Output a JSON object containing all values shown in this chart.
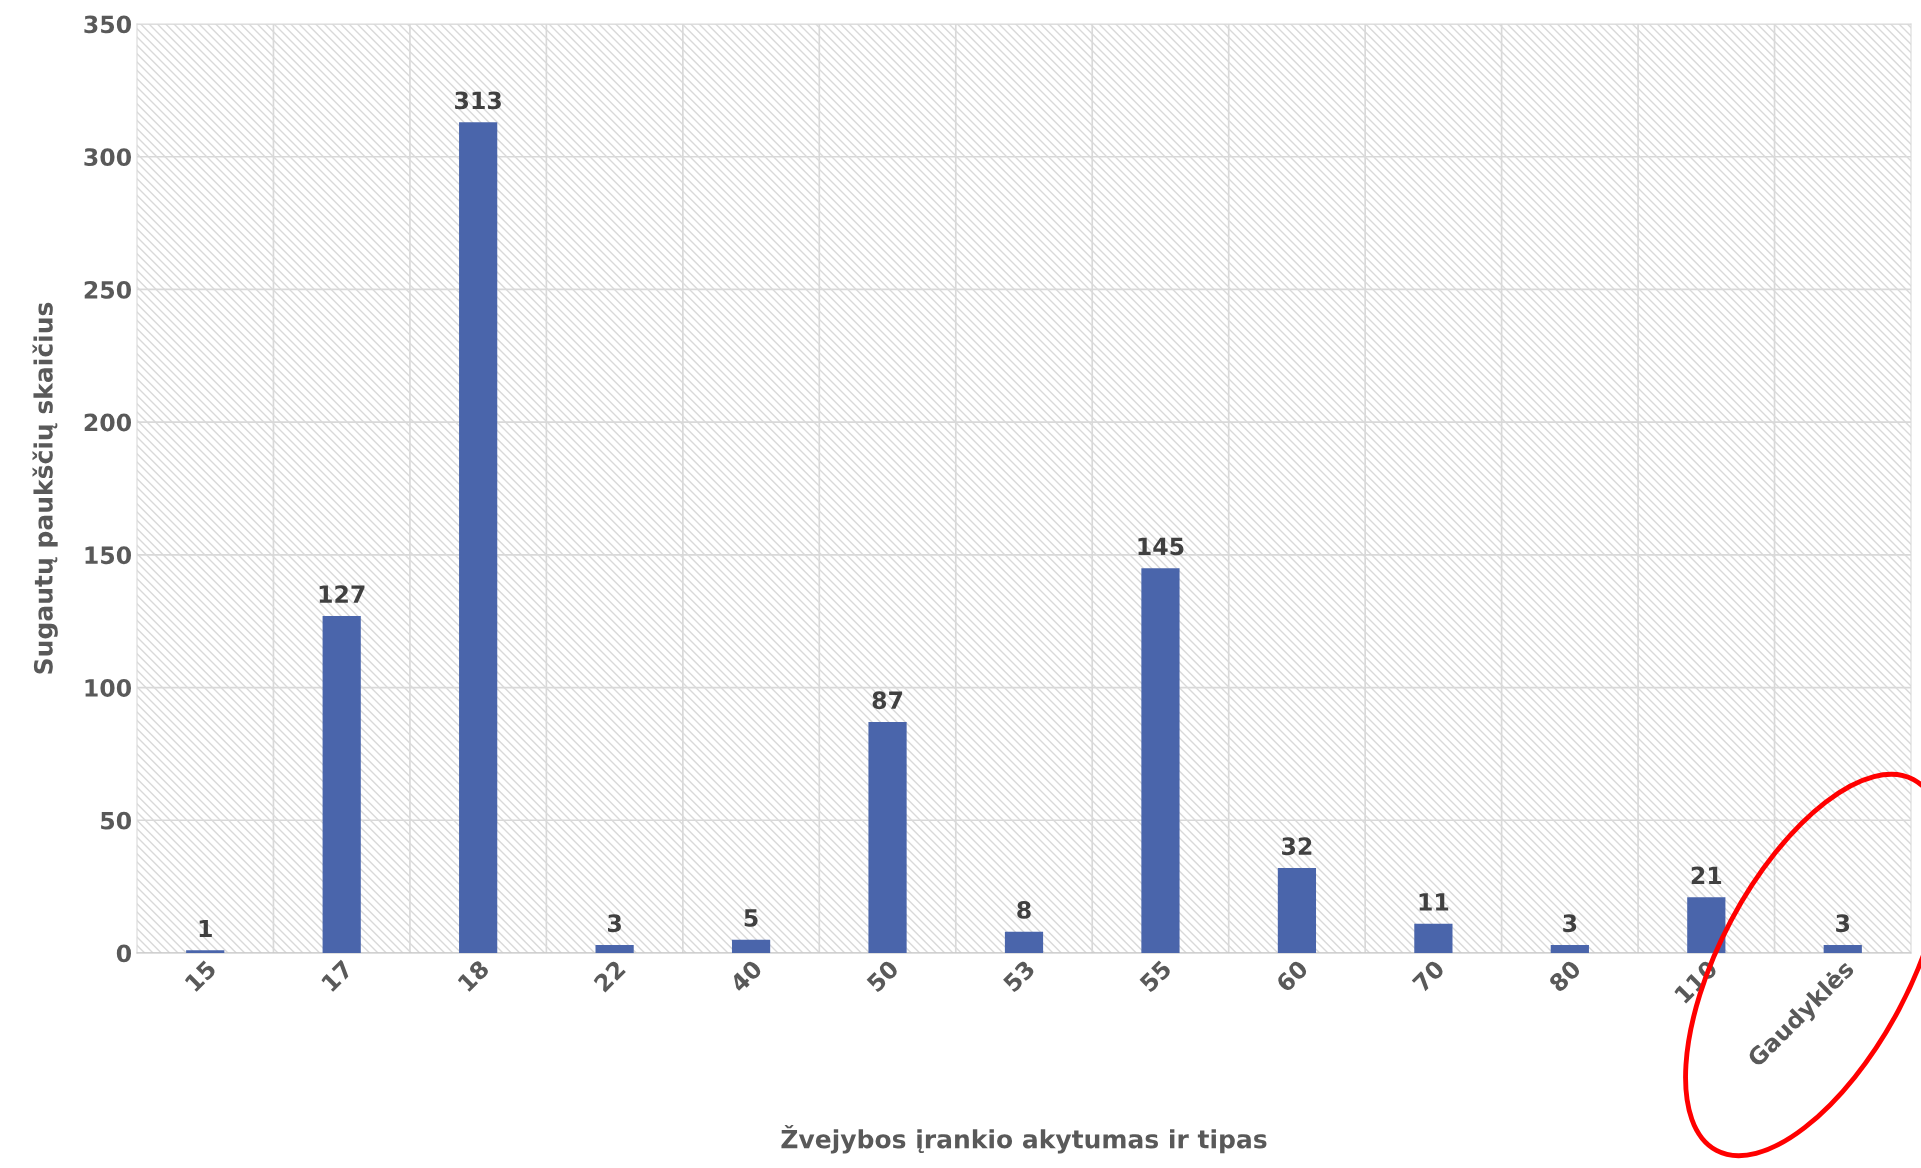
{
  "chart_data": {
    "type": "bar",
    "xlabel": "Žvejybos įrankio akytumas ir tipas",
    "ylabel": "Sugautų paukščių skaičius",
    "categories": [
      "15",
      "17",
      "18",
      "22",
      "40",
      "50",
      "53",
      "55",
      "60",
      "70",
      "80",
      "110",
      "Gaudyklės"
    ],
    "values": [
      1,
      127,
      313,
      3,
      5,
      87,
      8,
      145,
      32,
      11,
      3,
      21,
      3
    ],
    "color": "#4a65ab",
    "ylim": [
      0,
      350
    ],
    "yticks": [
      0,
      50,
      100,
      150,
      200,
      250,
      300,
      350
    ],
    "grid": true,
    "data_labels": true
  }
}
